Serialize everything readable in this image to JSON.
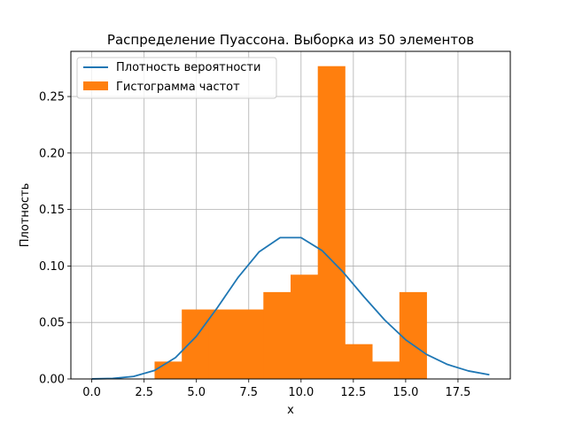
{
  "chart_data": {
    "type": "bar",
    "title": "Распределение Пуассона. Выборка из 50 элементов",
    "xlabel": "x",
    "ylabel": "Плотность",
    "xlim": [
      -1.0,
      20.0
    ],
    "ylim": [
      0,
      0.29
    ],
    "xticks": [
      0,
      2.5,
      5,
      7.5,
      10,
      12.5,
      15,
      17.5
    ],
    "xtick_labels": [
      "0.0",
      "2.5",
      "5.0",
      "7.5",
      "10.0",
      "12.5",
      "15.0",
      "17.5"
    ],
    "yticks": [
      0,
      0.05,
      0.1,
      0.15,
      0.2,
      0.25
    ],
    "ytick_labels": [
      "0.00",
      "0.05",
      "0.10",
      "0.15",
      "0.20",
      "0.25"
    ],
    "grid": true,
    "legend_position": "top-left",
    "series": [
      {
        "name": "Плотность вероятности",
        "kind": "line",
        "color": "#1f77b4",
        "x": [
          0,
          1,
          2,
          3,
          4,
          5,
          6,
          7,
          8,
          9,
          10,
          11,
          12,
          13,
          14,
          15,
          16,
          17,
          18,
          19
        ],
        "y": [
          4.54e-05,
          0.000454,
          0.00227,
          0.00757,
          0.0189,
          0.0378,
          0.0631,
          0.0901,
          0.1126,
          0.1251,
          0.1251,
          0.1137,
          0.0948,
          0.0729,
          0.0521,
          0.0347,
          0.0217,
          0.0128,
          0.0071,
          0.0037
        ]
      },
      {
        "name": "Гистограмма частот",
        "kind": "histogram",
        "color": "#ff7f0e",
        "bin_edges": [
          3.0,
          4.3,
          5.6,
          6.9,
          8.2,
          9.5,
          10.8,
          12.1,
          13.4,
          14.7,
          16.0
        ],
        "values": [
          0.0154,
          0.0615,
          0.0615,
          0.0615,
          0.0769,
          0.0923,
          0.2769,
          0.0308,
          0.0154,
          0.0769
        ]
      }
    ]
  }
}
